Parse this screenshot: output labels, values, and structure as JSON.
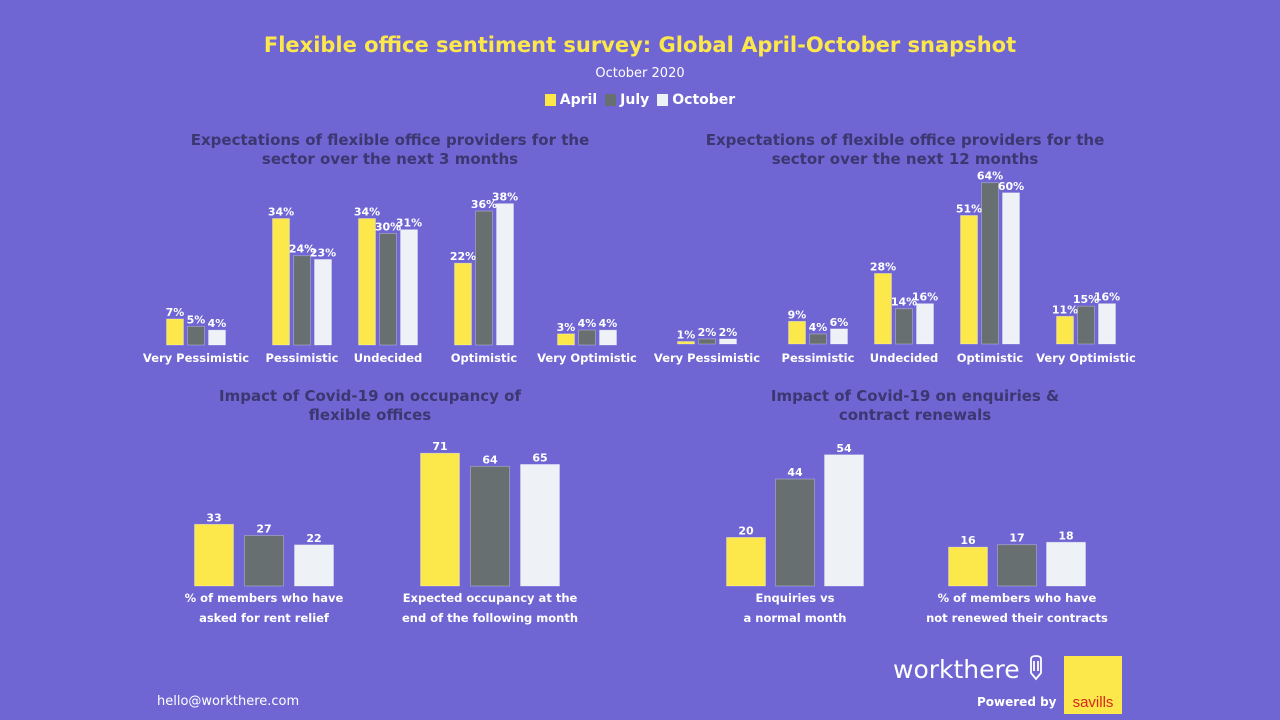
{
  "header": {
    "title": "Flexible office sentiment survey: Global April-October snapshot",
    "subtitle": "October 2020",
    "legend": [
      {
        "label": "April",
        "color": "#fde84c"
      },
      {
        "label": "July",
        "color": "#676f70"
      },
      {
        "label": "October",
        "color": "#eef1f6"
      }
    ]
  },
  "footer": {
    "email": "hello@workthere.com",
    "brand": "workthere",
    "powered_by": "Powered by",
    "partner": "savills"
  },
  "chart_data": [
    {
      "type": "bar",
      "title": "Expectations of flexible office providers for the sector over the next 3 months",
      "categories": [
        "Very Pessimistic",
        "Pessimistic",
        "Undecided",
        "Optimistic",
        "Very Optimistic"
      ],
      "series": [
        {
          "name": "April",
          "values": [
            7,
            34,
            34,
            22,
            3
          ]
        },
        {
          "name": "July",
          "values": [
            5,
            24,
            30,
            36,
            4
          ]
        },
        {
          "name": "October",
          "values": [
            4,
            23,
            31,
            38,
            4
          ]
        }
      ],
      "unit": "%",
      "xlabel": "",
      "ylabel": "",
      "grid": false
    },
    {
      "type": "bar",
      "title": "Expectations of flexible office providers for the sector over the next 12 months",
      "categories": [
        "Very Pessimistic",
        "Pessimistic",
        "Undecided",
        "Optimistic",
        "Very Optimistic"
      ],
      "series": [
        {
          "name": "April",
          "values": [
            1,
            9,
            28,
            51,
            11
          ]
        },
        {
          "name": "July",
          "values": [
            2,
            4,
            14,
            64,
            15
          ]
        },
        {
          "name": "October",
          "values": [
            2,
            6,
            16,
            60,
            16
          ]
        }
      ],
      "unit": "%",
      "xlabel": "",
      "ylabel": "",
      "grid": false
    },
    {
      "type": "bar",
      "title": "Impact of Covid-19 on occupancy of flexible offices",
      "categories": [
        "% of members who have asked for rent relief",
        "Expected occupancy at the end of the following month"
      ],
      "category_lines": [
        [
          "% of members who have",
          "asked for rent relief"
        ],
        [
          "Expected occupancy at the",
          "end of the following month"
        ]
      ],
      "series": [
        {
          "name": "April",
          "values": [
            33,
            71
          ]
        },
        {
          "name": "July",
          "values": [
            27,
            64
          ]
        },
        {
          "name": "October",
          "values": [
            22,
            65
          ]
        }
      ],
      "unit": "",
      "xlabel": "",
      "ylabel": "",
      "grid": false
    },
    {
      "type": "bar",
      "title": "Impact of Covid-19 on enquiries & contract renewals",
      "categories": [
        "Enquiries vs a normal month",
        "% of members who have not renewed their contracts"
      ],
      "category_lines": [
        [
          "Enquiries vs",
          "a normal month"
        ],
        [
          "% of members who have",
          "not renewed their contracts"
        ]
      ],
      "series": [
        {
          "name": "April",
          "values": [
            20,
            16
          ]
        },
        {
          "name": "July",
          "values": [
            44,
            17
          ]
        },
        {
          "name": "October",
          "values": [
            54,
            18
          ]
        }
      ],
      "unit": "",
      "xlabel": "",
      "ylabel": "",
      "grid": false
    }
  ]
}
